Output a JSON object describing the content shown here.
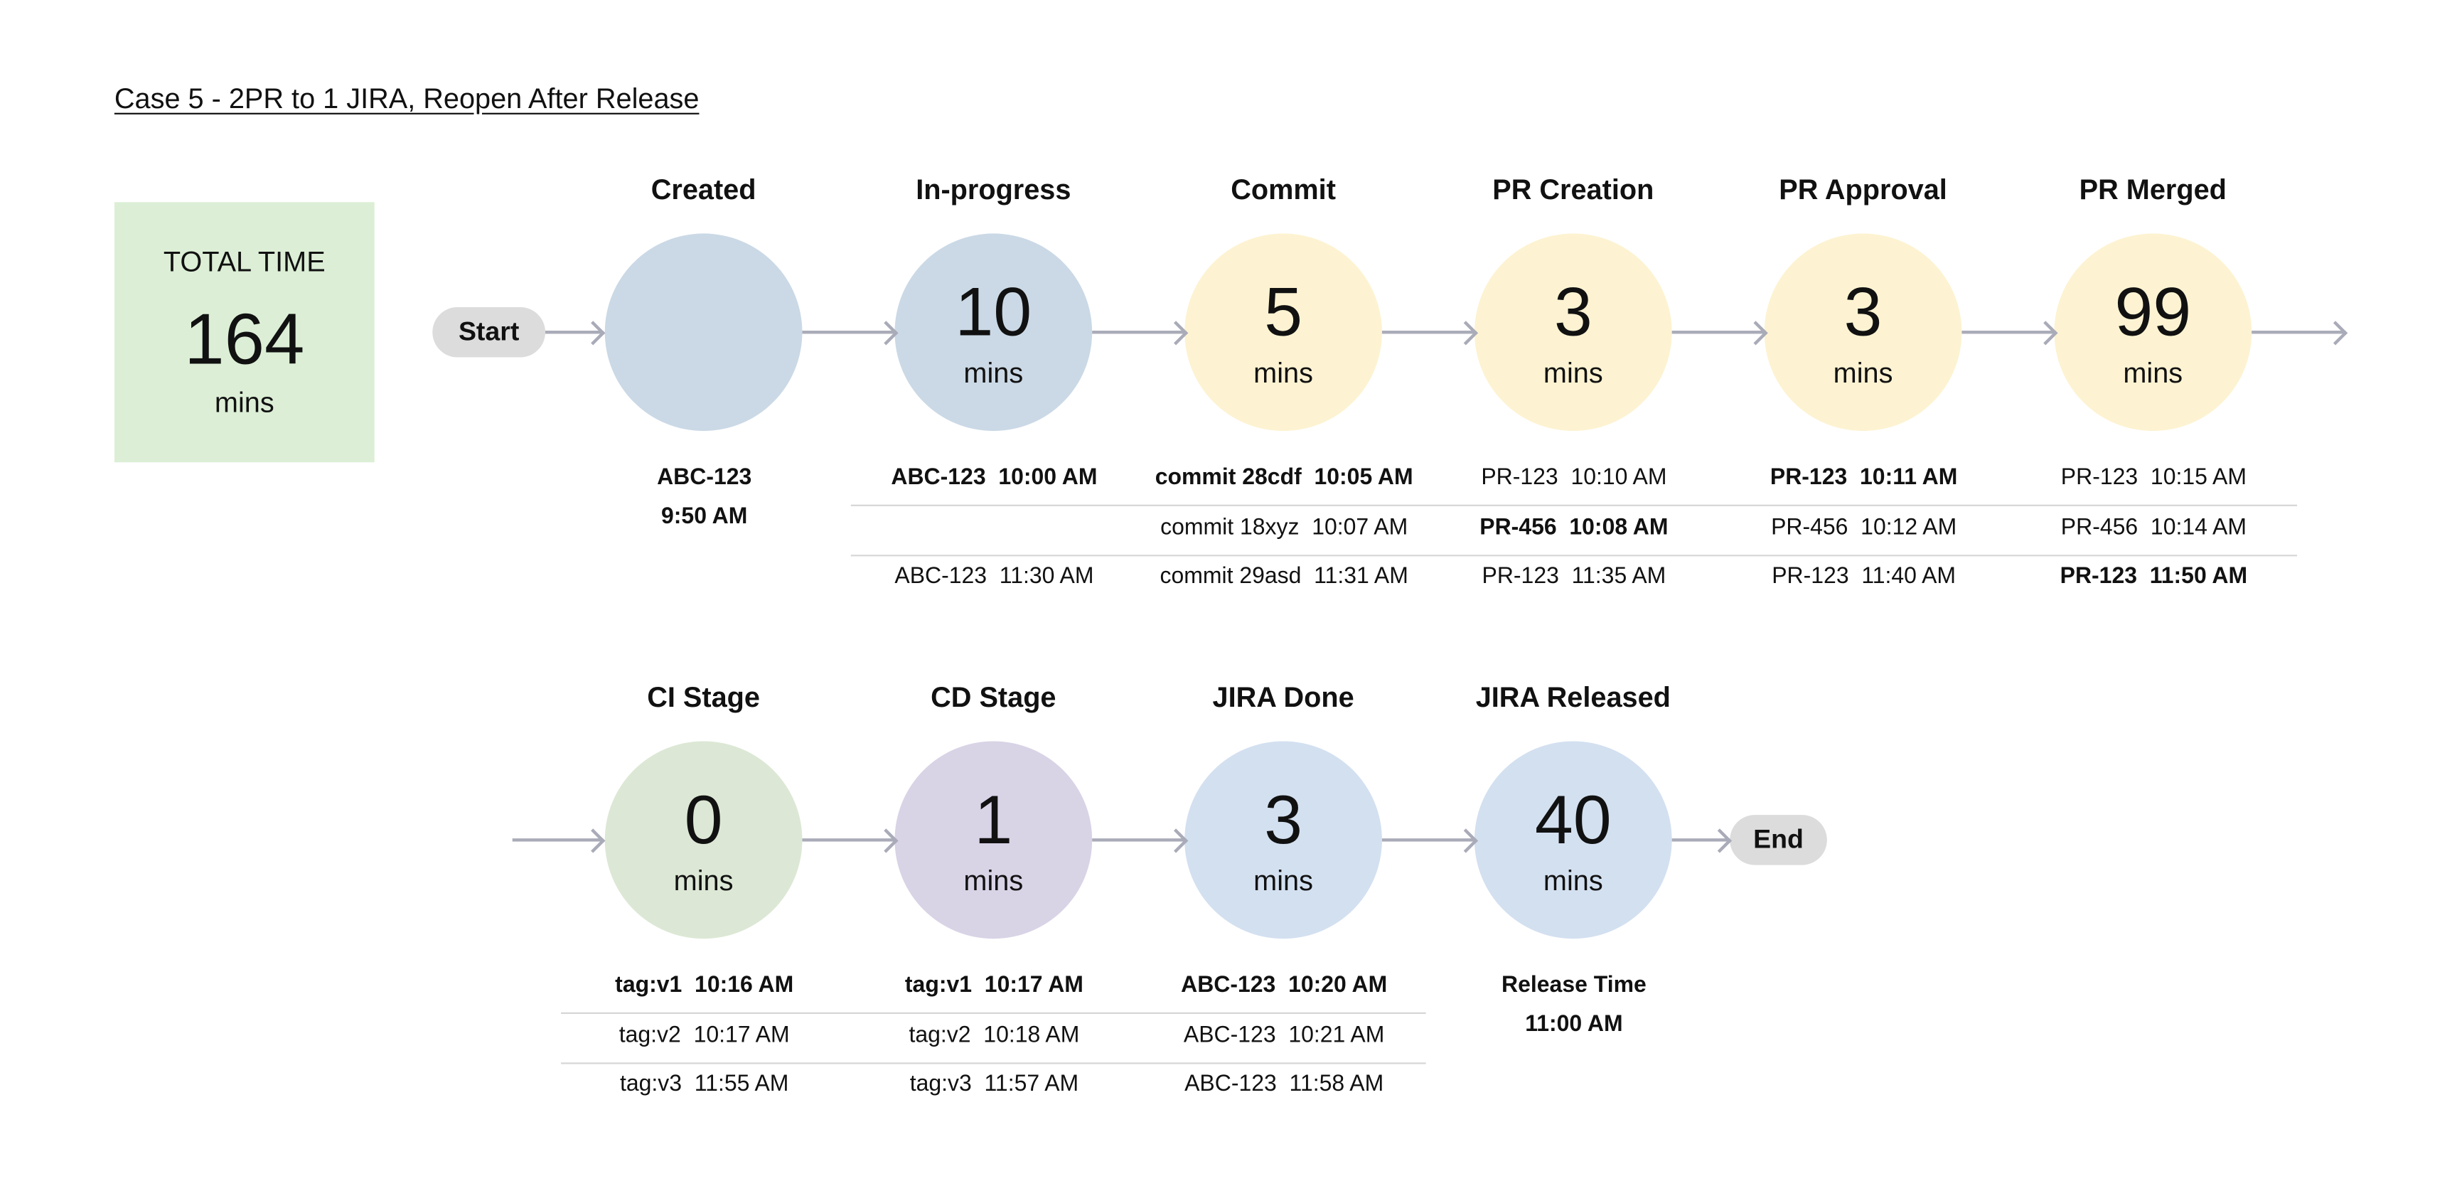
{
  "title": "Case 5 - 2PR to 1 JIRA, Reopen After Release",
  "total": {
    "label": "TOTAL TIME",
    "value": "164",
    "unit": "mins"
  },
  "start_label": "Start",
  "end_label": "End",
  "row1": [
    {
      "label": "Created",
      "value": "",
      "unit": "",
      "color": "#cbd9e6",
      "notes": [
        {
          "text": "ABC-123",
          "bold": true
        },
        {
          "text": "9:50 AM",
          "bold": true
        }
      ],
      "rows": []
    },
    {
      "label": "In-progress",
      "value": "10",
      "unit": "mins",
      "color": "#cbd9e6",
      "rows": [
        {
          "text": "ABC-123  10:00 AM",
          "bold": true
        },
        {
          "text": "",
          "bold": false
        },
        {
          "text": "ABC-123  11:30 AM",
          "bold": false
        }
      ]
    },
    {
      "label": "Commit",
      "value": "5",
      "unit": "mins",
      "color": "#fdf3d2",
      "rows": [
        {
          "text": "commit 28cdf  10:05 AM",
          "bold": true
        },
        {
          "text": "commit 18xyz  10:07 AM",
          "bold": false
        },
        {
          "text": "commit 29asd  11:31 AM",
          "bold": false
        }
      ]
    },
    {
      "label": "PR Creation",
      "value": "3",
      "unit": "mins",
      "color": "#fdf3d2",
      "rows": [
        {
          "text": "PR-123  10:10 AM",
          "bold": false
        },
        {
          "text": "PR-456  10:08 AM",
          "bold": true
        },
        {
          "text": "PR-123  11:35 AM",
          "bold": false
        }
      ]
    },
    {
      "label": "PR Approval",
      "value": "3",
      "unit": "mins",
      "color": "#fdf3d2",
      "rows": [
        {
          "text": "PR-123  10:11 AM",
          "bold": true
        },
        {
          "text": "PR-456  10:12 AM",
          "bold": false
        },
        {
          "text": "PR-123  11:40 AM",
          "bold": false
        }
      ]
    },
    {
      "label": "PR Merged",
      "value": "99",
      "unit": "mins",
      "color": "#fdf3d2",
      "rows": [
        {
          "text": "PR-123  10:15 AM",
          "bold": false
        },
        {
          "text": "PR-456  10:14 AM",
          "bold": false
        },
        {
          "text": "PR-123  11:50 AM",
          "bold": true
        }
      ]
    }
  ],
  "row2": [
    {
      "label": "CI Stage",
      "value": "0",
      "unit": "mins",
      "color": "#dce8d5",
      "rows": [
        {
          "text": "tag:v1  10:16 AM",
          "bold": true
        },
        {
          "text": "tag:v2  10:17 AM",
          "bold": false
        },
        {
          "text": "tag:v3  11:55 AM",
          "bold": false
        }
      ]
    },
    {
      "label": "CD Stage",
      "value": "1",
      "unit": "mins",
      "color": "#d9d3e6",
      "rows": [
        {
          "text": "tag:v1  10:17 AM",
          "bold": true
        },
        {
          "text": "tag:v2  10:18 AM",
          "bold": false
        },
        {
          "text": "tag:v3  11:57 AM",
          "bold": false
        }
      ]
    },
    {
      "label": "JIRA Done",
      "value": "3",
      "unit": "mins",
      "color": "#d3e0f0",
      "rows": [
        {
          "text": "ABC-123  10:20 AM",
          "bold": true
        },
        {
          "text": "ABC-123  10:21 AM",
          "bold": false
        },
        {
          "text": "ABC-123  11:58 AM",
          "bold": false
        }
      ]
    },
    {
      "label": "JIRA Released",
      "value": "40",
      "unit": "mins",
      "color": "#d3e0f0",
      "notes": [
        {
          "text": "Release Time",
          "bold": true
        },
        {
          "text": "11:00 AM",
          "bold": true
        }
      ],
      "rows": []
    }
  ]
}
